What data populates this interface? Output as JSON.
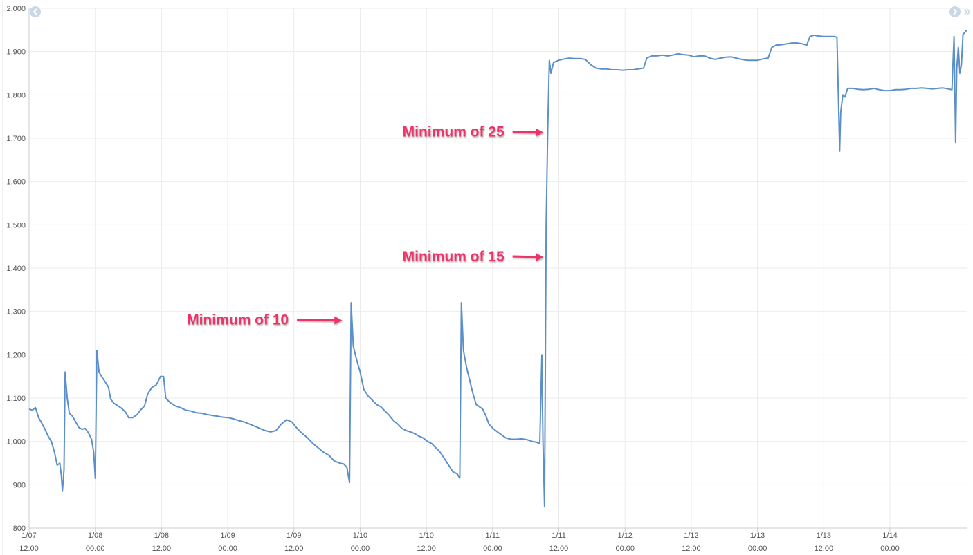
{
  "chart_data": {
    "type": "line",
    "title": "",
    "xlabel": "",
    "ylabel": "",
    "ylim": [
      800,
      2000
    ],
    "xlim_hours": [
      0,
      177
    ],
    "grid": true,
    "legend": "none",
    "y_ticks": [
      {
        "value": 800,
        "label": "800"
      },
      {
        "value": 900,
        "label": "900"
      },
      {
        "value": 1000,
        "label": "1,000"
      },
      {
        "value": 1100,
        "label": "1,100"
      },
      {
        "value": 1200,
        "label": "1,200"
      },
      {
        "value": 1300,
        "label": "1,300"
      },
      {
        "value": 1400,
        "label": "1,400"
      },
      {
        "value": 1500,
        "label": "1,500"
      },
      {
        "value": 1600,
        "label": "1,600"
      },
      {
        "value": 1700,
        "label": "1,700"
      },
      {
        "value": 1800,
        "label": "1,800"
      },
      {
        "value": 1900,
        "label": "1,900"
      },
      {
        "value": 2000,
        "label": "2,000"
      }
    ],
    "x_ticks": [
      {
        "hour": 0,
        "date": "1/07",
        "time": "12:00"
      },
      {
        "hour": 12.5,
        "date": "1/08",
        "time": "00:00"
      },
      {
        "hour": 25,
        "date": "1/08",
        "time": "12:00"
      },
      {
        "hour": 37.5,
        "date": "1/09",
        "time": "00:00"
      },
      {
        "hour": 50,
        "date": "1/09",
        "time": "12:00"
      },
      {
        "hour": 62.5,
        "date": "1/10",
        "time": "00:00"
      },
      {
        "hour": 75,
        "date": "1/10",
        "time": "12:00"
      },
      {
        "hour": 87.5,
        "date": "1/11",
        "time": "00:00"
      },
      {
        "hour": 100,
        "date": "1/11",
        "time": "12:00"
      },
      {
        "hour": 112.5,
        "date": "1/12",
        "time": "00:00"
      },
      {
        "hour": 125,
        "date": "1/12",
        "time": "12:00"
      },
      {
        "hour": 137.5,
        "date": "1/13",
        "time": "00:00"
      },
      {
        "hour": 150,
        "date": "1/13",
        "time": "12:00"
      },
      {
        "hour": 162.5,
        "date": "1/14",
        "time": "00:00"
      }
    ],
    "series": [
      {
        "color": "#5b8fc9",
        "points": [
          [
            0,
            1075
          ],
          [
            0.6,
            1072
          ],
          [
            1.2,
            1078
          ],
          [
            1.8,
            1055
          ],
          [
            2.4,
            1042
          ],
          [
            3,
            1028
          ],
          [
            3.6,
            1012
          ],
          [
            4.2,
            1000
          ],
          [
            4.8,
            975
          ],
          [
            5.3,
            945
          ],
          [
            5.8,
            950
          ],
          [
            6.1,
            920
          ],
          [
            6.3,
            885
          ],
          [
            6.6,
            935
          ],
          [
            6.8,
            1160
          ],
          [
            7.2,
            1100
          ],
          [
            7.6,
            1065
          ],
          [
            8.2,
            1058
          ],
          [
            8.8,
            1045
          ],
          [
            9.4,
            1032
          ],
          [
            10,
            1028
          ],
          [
            10.6,
            1030
          ],
          [
            11.2,
            1020
          ],
          [
            11.8,
            1005
          ],
          [
            12.2,
            975
          ],
          [
            12.5,
            915
          ],
          [
            12.8,
            1210
          ],
          [
            13.2,
            1160
          ],
          [
            13.8,
            1148
          ],
          [
            14.5,
            1135
          ],
          [
            15,
            1125
          ],
          [
            15.4,
            1098
          ],
          [
            16,
            1088
          ],
          [
            16.8,
            1082
          ],
          [
            17.5,
            1076
          ],
          [
            18.2,
            1068
          ],
          [
            18.8,
            1055
          ],
          [
            19.6,
            1055
          ],
          [
            20.4,
            1062
          ],
          [
            21,
            1072
          ],
          [
            21.8,
            1082
          ],
          [
            22.4,
            1110
          ],
          [
            23.2,
            1125
          ],
          [
            24,
            1130
          ],
          [
            24.8,
            1150
          ],
          [
            25.4,
            1150
          ],
          [
            25.8,
            1100
          ],
          [
            26.6,
            1090
          ],
          [
            27.6,
            1082
          ],
          [
            28.6,
            1078
          ],
          [
            29.6,
            1072
          ],
          [
            30.6,
            1070
          ],
          [
            31.6,
            1066
          ],
          [
            32.6,
            1065
          ],
          [
            33.6,
            1062
          ],
          [
            34.6,
            1060
          ],
          [
            35.6,
            1058
          ],
          [
            36.6,
            1056
          ],
          [
            37.6,
            1055
          ],
          [
            38.6,
            1052
          ],
          [
            39.6,
            1048
          ],
          [
            40.6,
            1045
          ],
          [
            41.6,
            1040
          ],
          [
            42.6,
            1035
          ],
          [
            43.6,
            1030
          ],
          [
            44.6,
            1025
          ],
          [
            45.6,
            1022
          ],
          [
            46.6,
            1025
          ],
          [
            47.6,
            1040
          ],
          [
            48.6,
            1050
          ],
          [
            49.6,
            1045
          ],
          [
            50.6,
            1030
          ],
          [
            51.6,
            1018
          ],
          [
            52.6,
            1008
          ],
          [
            53.6,
            995
          ],
          [
            54.6,
            985
          ],
          [
            55.6,
            975
          ],
          [
            56.6,
            968
          ],
          [
            57.6,
            955
          ],
          [
            58.6,
            950
          ],
          [
            59.4,
            948
          ],
          [
            60,
            940
          ],
          [
            60.5,
            905
          ],
          [
            60.8,
            1320
          ],
          [
            61.2,
            1220
          ],
          [
            61.8,
            1190
          ],
          [
            62.5,
            1160
          ],
          [
            63.2,
            1120
          ],
          [
            64,
            1105
          ],
          [
            64.8,
            1095
          ],
          [
            65.6,
            1085
          ],
          [
            66.4,
            1080
          ],
          [
            67.2,
            1070
          ],
          [
            68,
            1060
          ],
          [
            68.8,
            1048
          ],
          [
            69.6,
            1040
          ],
          [
            70.4,
            1030
          ],
          [
            71.2,
            1025
          ],
          [
            72,
            1022
          ],
          [
            72.8,
            1018
          ],
          [
            73.6,
            1012
          ],
          [
            74.4,
            1008
          ],
          [
            75.2,
            1000
          ],
          [
            76,
            995
          ],
          [
            76.8,
            985
          ],
          [
            77.6,
            975
          ],
          [
            78.4,
            960
          ],
          [
            79.2,
            945
          ],
          [
            80,
            930
          ],
          [
            80.8,
            925
          ],
          [
            81.3,
            915
          ],
          [
            81.6,
            1320
          ],
          [
            82,
            1210
          ],
          [
            82.6,
            1170
          ],
          [
            83.2,
            1140
          ],
          [
            83.8,
            1110
          ],
          [
            84.4,
            1085
          ],
          [
            85,
            1080
          ],
          [
            85.6,
            1075
          ],
          [
            86.2,
            1060
          ],
          [
            86.8,
            1040
          ],
          [
            87.6,
            1030
          ],
          [
            88.4,
            1022
          ],
          [
            89.2,
            1015
          ],
          [
            90,
            1008
          ],
          [
            91,
            1005
          ],
          [
            92,
            1005
          ],
          [
            93,
            1006
          ],
          [
            94,
            1004
          ],
          [
            95,
            1000
          ],
          [
            95.8,
            998
          ],
          [
            96.4,
            995
          ],
          [
            96.8,
            1200
          ],
          [
            97.0,
            1000
          ],
          [
            97.3,
            850
          ],
          [
            97.6,
            1500
          ],
          [
            97.9,
            1720
          ],
          [
            98.2,
            1880
          ],
          [
            98.5,
            1850
          ],
          [
            99,
            1875
          ],
          [
            100,
            1880
          ],
          [
            101,
            1883
          ],
          [
            102,
            1885
          ],
          [
            103,
            1884
          ],
          [
            104,
            1884
          ],
          [
            105,
            1882
          ],
          [
            106,
            1870
          ],
          [
            107,
            1862
          ],
          [
            108,
            1860
          ],
          [
            109,
            1860
          ],
          [
            110,
            1858
          ],
          [
            111,
            1858
          ],
          [
            112,
            1857
          ],
          [
            113,
            1858
          ],
          [
            114,
            1858
          ],
          [
            115,
            1860
          ],
          [
            116,
            1862
          ],
          [
            116.6,
            1885
          ],
          [
            117.5,
            1890
          ],
          [
            118.5,
            1890
          ],
          [
            119.5,
            1892
          ],
          [
            120.5,
            1890
          ],
          [
            121.5,
            1892
          ],
          [
            122.5,
            1895
          ],
          [
            123.5,
            1893
          ],
          [
            124.5,
            1892
          ],
          [
            125.5,
            1888
          ],
          [
            126.5,
            1890
          ],
          [
            127.5,
            1890
          ],
          [
            128.5,
            1885
          ],
          [
            129.5,
            1882
          ],
          [
            130.5,
            1885
          ],
          [
            131.5,
            1887
          ],
          [
            132.5,
            1888
          ],
          [
            133.5,
            1885
          ],
          [
            134.5,
            1882
          ],
          [
            135.5,
            1880
          ],
          [
            136.5,
            1880
          ],
          [
            137.5,
            1880
          ],
          [
            138.5,
            1883
          ],
          [
            139.5,
            1885
          ],
          [
            140.2,
            1910
          ],
          [
            141,
            1915
          ],
          [
            142,
            1916
          ],
          [
            143,
            1918
          ],
          [
            144,
            1920
          ],
          [
            145,
            1920
          ],
          [
            146,
            1918
          ],
          [
            146.8,
            1915
          ],
          [
            147.4,
            1935
          ],
          [
            148.2,
            1938
          ],
          [
            149,
            1936
          ],
          [
            150,
            1935
          ],
          [
            151,
            1935
          ],
          [
            152,
            1935
          ],
          [
            152.5,
            1933
          ],
          [
            152.8,
            1780
          ],
          [
            153.0,
            1670
          ],
          [
            153.2,
            1760
          ],
          [
            153.6,
            1800
          ],
          [
            154,
            1795
          ],
          [
            154.5,
            1815
          ],
          [
            155.5,
            1815
          ],
          [
            156.5,
            1813
          ],
          [
            157.5,
            1812
          ],
          [
            158.5,
            1813
          ],
          [
            159.5,
            1815
          ],
          [
            160.5,
            1812
          ],
          [
            161.5,
            1810
          ],
          [
            162.5,
            1810
          ],
          [
            163.5,
            1812
          ],
          [
            164.5,
            1812
          ],
          [
            165.5,
            1813
          ],
          [
            166.5,
            1815
          ],
          [
            167.5,
            1815
          ],
          [
            168.5,
            1816
          ],
          [
            169.5,
            1815
          ],
          [
            170.5,
            1814
          ],
          [
            171.5,
            1815
          ],
          [
            172.5,
            1816
          ],
          [
            173.5,
            1814
          ],
          [
            174.2,
            1812
          ],
          [
            174.6,
            1935
          ],
          [
            174.9,
            1690
          ],
          [
            175.1,
            1860
          ],
          [
            175.4,
            1910
          ],
          [
            175.7,
            1850
          ],
          [
            176.0,
            1870
          ],
          [
            176.3,
            1940
          ],
          [
            176.7,
            1945
          ],
          [
            177,
            1950
          ]
        ]
      }
    ],
    "annotations": [
      {
        "text": "Minimum of 10",
        "text_hour": 49,
        "text_value": 1270,
        "target_hour": 59.6,
        "target_value": 1268
      },
      {
        "text": "Minimum of 15",
        "text_hour": 89.7,
        "text_value": 1416,
        "target_hour": 97.6,
        "target_value": 1412
      },
      {
        "text": "Minimum of 25",
        "text_hour": 89.7,
        "text_value": 1704,
        "target_hour": 97.6,
        "target_value": 1700
      }
    ],
    "colors": {
      "line": "#5b8fc9",
      "annotation": "#f0306a",
      "grid": "#ebebeb",
      "axis": "#cccccc",
      "nav_button": "#c9d7e7"
    },
    "nav_buttons": [
      "chevron-left-icon",
      "chevron-right-icon"
    ]
  }
}
